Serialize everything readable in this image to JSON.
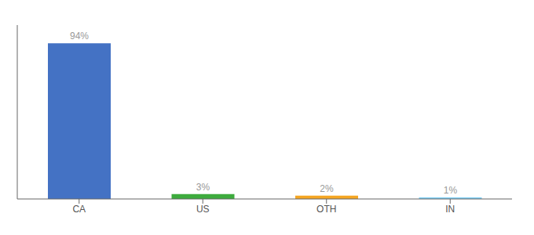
{
  "chart_data": {
    "type": "bar",
    "categories": [
      "CA",
      "US",
      "OTH",
      "IN"
    ],
    "values": [
      94,
      3,
      2,
      1
    ],
    "value_labels": [
      "94%",
      "3%",
      "2%",
      "1%"
    ],
    "colors": [
      "#4472c4",
      "#3dab3d",
      "#f5a623",
      "#7ecef4"
    ],
    "ylim": [
      0,
      105
    ],
    "data_labels": true,
    "tick_labels": "x",
    "grid": false
  }
}
